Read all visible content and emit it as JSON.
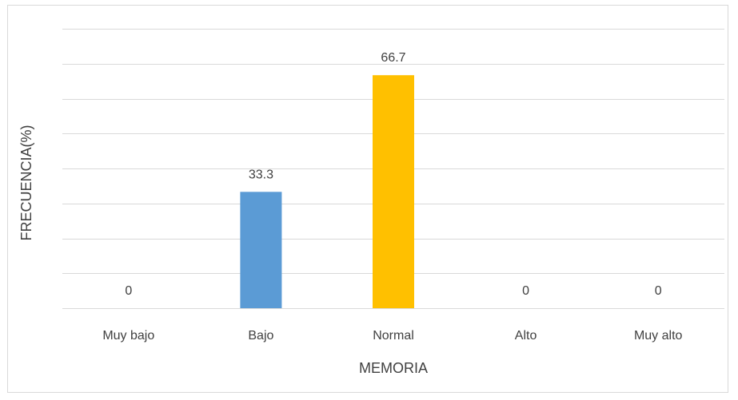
{
  "chart_data": {
    "type": "bar",
    "categories": [
      "Muy bajo",
      "Bajo",
      "Normal",
      "Alto",
      "Muy alto"
    ],
    "values": [
      0,
      33.3,
      66.7,
      0,
      0
    ],
    "data_labels": [
      "0",
      "33.3",
      "66.7",
      "0",
      "0"
    ],
    "bar_colors": [
      "#5B9BD5",
      "#5B9BD5",
      "#FFC000",
      "#5B9BD5",
      "#5B9BD5"
    ],
    "title": "",
    "xlabel": "MEMORIA",
    "ylabel": "FRECUENCIA(%)",
    "ylim": [
      0,
      80
    ],
    "y_gridline_step": 10,
    "grid": true,
    "y_tick_labels_shown": false,
    "legend": "none"
  }
}
